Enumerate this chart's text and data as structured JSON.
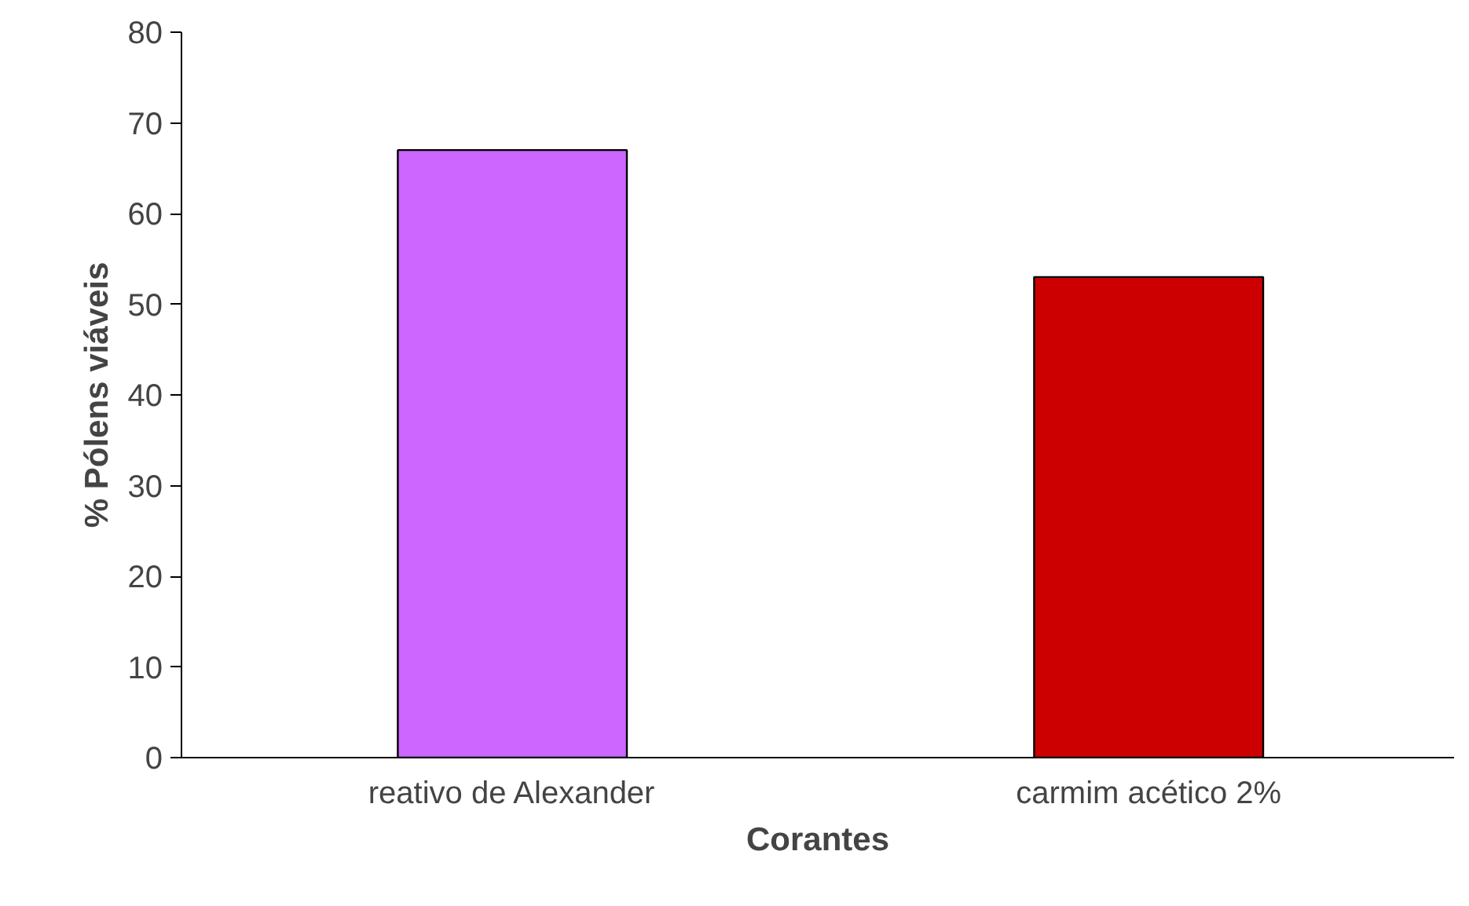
{
  "chart_data": {
    "type": "bar",
    "xlabel": "Corantes",
    "ylabel": "% Pólens viáveis",
    "categories": [
      "reativo de Alexander",
      "carmim acético 2%"
    ],
    "values": [
      67,
      53
    ],
    "colors": [
      "#cc66ff",
      "#cc0000"
    ],
    "ylim": [
      0,
      80
    ],
    "yticks": [
      0,
      10,
      20,
      30,
      40,
      50,
      60,
      70,
      80
    ],
    "grid": false
  }
}
